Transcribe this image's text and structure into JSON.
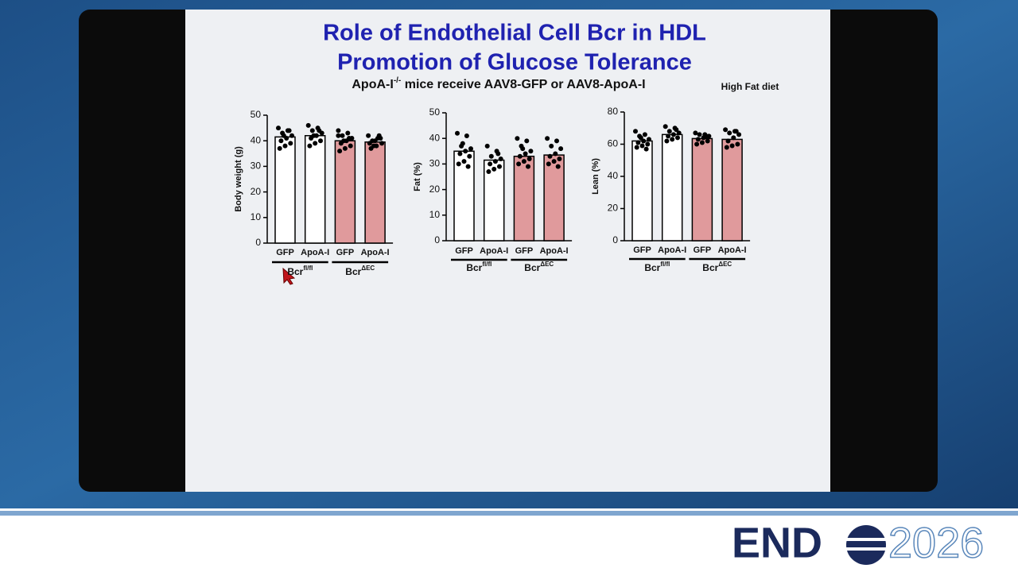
{
  "slide": {
    "title_lines": [
      "Role of Endothelial Cell Bcr in HDL",
      "Promotion of Glucose Tolerance"
    ],
    "subtitle": {
      "pre": "ApoA-I",
      "sup": "-/-",
      "post": " mice receive AAV8-GFP or AAV8-ApoA-I"
    },
    "note": "High Fat diet"
  },
  "chart_data": [
    {
      "type": "bar",
      "ylabel": "Body weight (g)",
      "categories": [
        "GFP",
        "ApoA-I",
        "GFP",
        "ApoA-I"
      ],
      "group_labels": [
        {
          "base": "Bcr",
          "sup": "fl/fl"
        },
        {
          "base": "Bcr",
          "sup": "ΔEC"
        }
      ],
      "values": [
        41.5,
        42,
        40,
        39.5
      ],
      "colors": [
        "#ffffff",
        "#ffffff",
        "#e09a9c",
        "#e09a9c"
      ],
      "ylim": [
        0,
        50
      ],
      "yticks": [
        0,
        10,
        20,
        30,
        40,
        50
      ],
      "points": [
        [
          45,
          44,
          43,
          42,
          41,
          40,
          39,
          38,
          37,
          44,
          42
        ],
        [
          46,
          45,
          44,
          43,
          42,
          41,
          40,
          39,
          38,
          44,
          42
        ],
        [
          44,
          43,
          42,
          41,
          40,
          39,
          38,
          37,
          36,
          41,
          40,
          42
        ],
        [
          42,
          41,
          40,
          39,
          38,
          37,
          41,
          40,
          39,
          42,
          38
        ]
      ]
    },
    {
      "type": "bar",
      "ylabel": "Fat (%)",
      "categories": [
        "GFP",
        "ApoA-I",
        "GFP",
        "ApoA-I"
      ],
      "group_labels": [
        {
          "base": "Bcr",
          "sup": "fl/fl"
        },
        {
          "base": "Bcr",
          "sup": "ΔEC"
        }
      ],
      "values": [
        35,
        31.5,
        33,
        33.5
      ],
      "colors": [
        "#ffffff",
        "#ffffff",
        "#e09a9c",
        "#e09a9c"
      ],
      "ylim": [
        0,
        50
      ],
      "yticks": [
        0,
        10,
        20,
        30,
        40,
        50
      ],
      "points": [
        [
          42,
          41,
          37,
          36,
          35,
          34,
          33,
          31,
          30,
          29,
          38
        ],
        [
          37,
          35,
          33,
          32,
          31,
          30,
          29,
          28,
          27,
          34
        ],
        [
          40,
          39,
          37,
          35,
          34,
          33,
          32,
          31,
          30,
          29,
          36
        ],
        [
          40,
          39,
          37,
          36,
          34,
          33,
          32,
          31,
          30,
          29
        ]
      ]
    },
    {
      "type": "bar",
      "ylabel": "Lean (%)",
      "categories": [
        "GFP",
        "ApoA-I",
        "GFP",
        "ApoA-I"
      ],
      "group_labels": [
        {
          "base": "Bcr",
          "sup": "fl/fl"
        },
        {
          "base": "Bcr",
          "sup": "ΔEC"
        }
      ],
      "values": [
        62,
        66,
        63.5,
        63
      ],
      "colors": [
        "#ffffff",
        "#ffffff",
        "#e09a9c",
        "#e09a9c"
      ],
      "ylim": [
        0,
        80
      ],
      "yticks": [
        0,
        20,
        40,
        60,
        80
      ],
      "points": [
        [
          68,
          66,
          65,
          63,
          62,
          61,
          60,
          59,
          58,
          57,
          64
        ],
        [
          71,
          70,
          68,
          67,
          66,
          65,
          64,
          63,
          62,
          69
        ],
        [
          67,
          66,
          66,
          65,
          64,
          63,
          62,
          61,
          60,
          65
        ],
        [
          69,
          68,
          67,
          66,
          64,
          62,
          60,
          59,
          58,
          68
        ]
      ]
    }
  ],
  "footer": {
    "logo_left": "END",
    "logo_right": "2026"
  }
}
